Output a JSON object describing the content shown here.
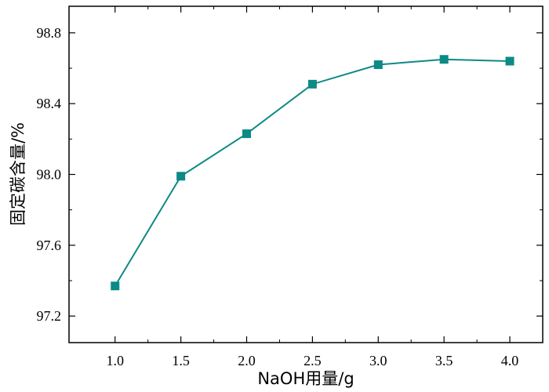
{
  "chart_data": {
    "type": "line",
    "title": "",
    "xlabel": "NaOH用量/g",
    "ylabel": "固定碳含量/%",
    "x": [
      1.0,
      1.5,
      2.0,
      2.5,
      3.0,
      3.5,
      4.0
    ],
    "series": [
      {
        "values": [
          97.37,
          97.99,
          98.23,
          98.51,
          98.62,
          98.65,
          98.64
        ]
      }
    ],
    "xlim": [
      0.65,
      4.25
    ],
    "ylim": [
      97.05,
      98.95
    ],
    "xticks": [
      "1.0",
      "1.5",
      "2.0",
      "2.5",
      "3.0",
      "3.5",
      "4.0"
    ],
    "yticks": [
      "97.2",
      "97.6",
      "98.0",
      "98.4",
      "98.8"
    ],
    "grid": false,
    "legend": "none",
    "colors": {
      "series": "#0c8a85",
      "axis": "#000000"
    },
    "marker": "square"
  }
}
